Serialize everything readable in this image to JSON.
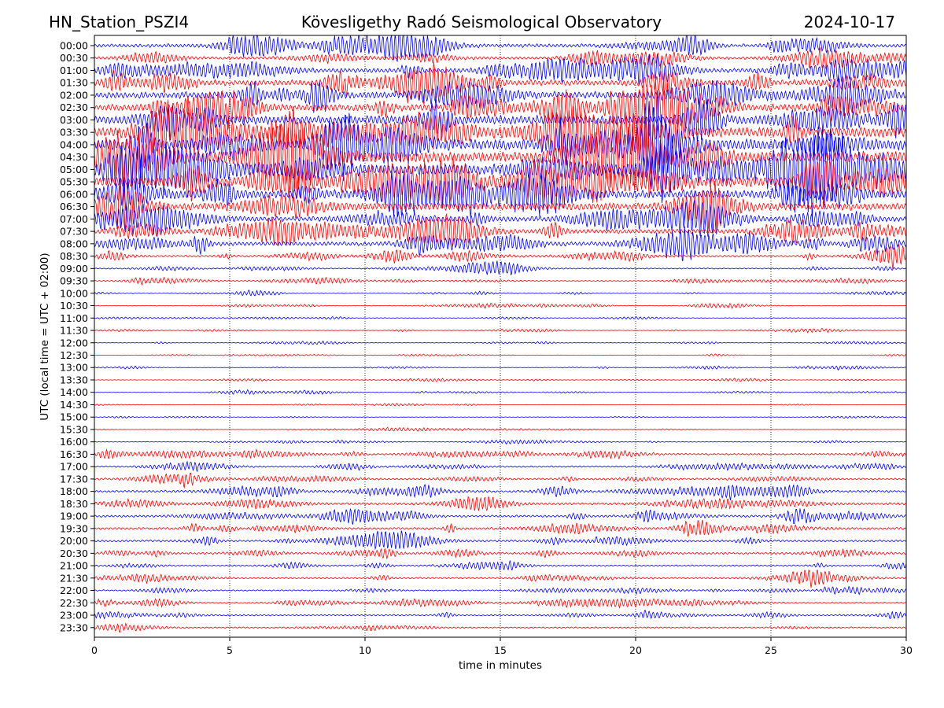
{
  "header": {
    "station": "HN_Station_PSZI4",
    "observatory": "Kövesligethy Radó Seismological Observatory",
    "date": "2024-10-17"
  },
  "chart_data": {
    "type": "line",
    "title": "Kövesligethy Radó Seismological Observatory",
    "xlabel": "time in minutes",
    "ylabel": "UTC (local time = UTC + 02:00)",
    "xlim": [
      0,
      30
    ],
    "x_ticks": [
      "0",
      "5",
      "10",
      "15",
      "20",
      "25",
      "30"
    ],
    "x_tick_values": [
      0,
      5,
      10,
      15,
      20,
      25,
      30
    ],
    "grid": "vertical dotted at x ticks",
    "colors": [
      "#0000ff",
      "#ff0000"
    ],
    "rows": [
      "00:00",
      "00:30",
      "01:00",
      "01:30",
      "02:00",
      "02:30",
      "03:00",
      "03:30",
      "04:00",
      "04:30",
      "05:00",
      "05:30",
      "06:00",
      "06:30",
      "07:00",
      "07:30",
      "08:00",
      "08:30",
      "09:00",
      "09:30",
      "10:00",
      "10:30",
      "11:00",
      "11:30",
      "12:00",
      "12:30",
      "13:00",
      "13:30",
      "14:00",
      "14:30",
      "15:00",
      "15:30",
      "16:00",
      "16:30",
      "17:00",
      "17:30",
      "18:00",
      "18:30",
      "19:00",
      "19:30",
      "20:00",
      "20:30",
      "21:00",
      "21:30",
      "22:00",
      "22:30",
      "23:00",
      "23:30"
    ],
    "relative_amplitude": [
      0.8,
      0.6,
      1.0,
      1.3,
      1.5,
      1.6,
      2.0,
      2.2,
      2.4,
      2.4,
      2.4,
      2.2,
      1.8,
      1.6,
      1.2,
      1.0,
      0.9,
      0.4,
      0.25,
      0.2,
      0.15,
      0.12,
      0.15,
      0.12,
      0.12,
      0.1,
      0.12,
      0.1,
      0.1,
      0.08,
      0.1,
      0.08,
      0.15,
      0.35,
      0.35,
      0.4,
      0.5,
      0.5,
      0.5,
      0.5,
      0.45,
      0.45,
      0.35,
      0.35,
      0.3,
      0.3,
      0.3,
      0.3
    ]
  }
}
